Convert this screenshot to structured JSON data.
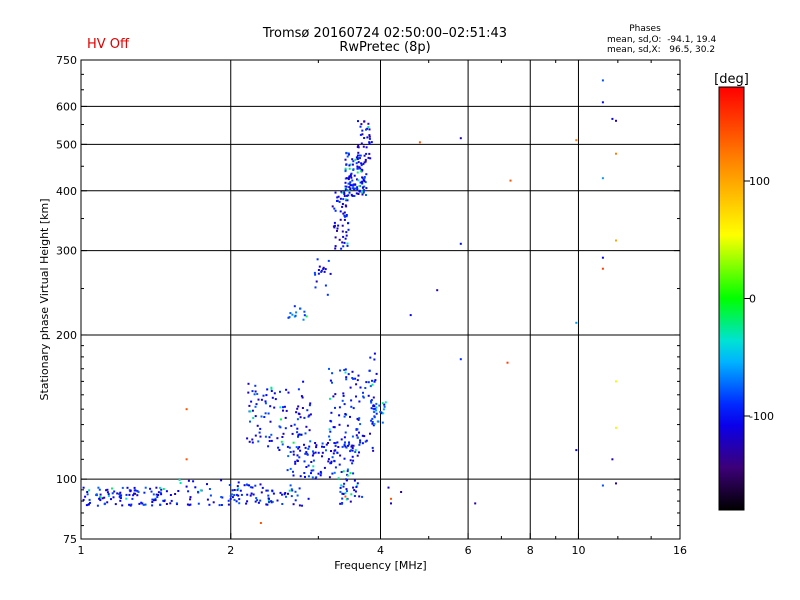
{
  "header": {
    "title_line1": "Tromsø 20160724 02:50:00–02:51:43",
    "title_line2": "RwPretec (8p)",
    "status": "HV Off",
    "status_color": "#e00000"
  },
  "stats": {
    "title": "Phases",
    "line_o": "mean, sd,O:  -94.1, 19.4",
    "line_x": "mean, sd,X:   96.5, 30.2"
  },
  "chart_data": {
    "type": "scatter",
    "xlabel": "Frequency [MHz]",
    "ylabel": "Stationary phase Virtual Height [km]",
    "xscale": "log",
    "yscale": "log",
    "xlim": [
      1,
      16
    ],
    "ylim": [
      75,
      750
    ],
    "xticks": [
      1,
      2,
      4,
      6,
      8,
      10,
      16
    ],
    "xtick_labels": [
      "1",
      "2",
      "4",
      "6",
      "8",
      "10",
      "16"
    ],
    "yticks": [
      75,
      100,
      200,
      300,
      400,
      500,
      600,
      750
    ],
    "ytick_labels": [
      "75",
      "100",
      "200",
      "300",
      "400",
      "500",
      "600",
      "750"
    ],
    "grid": true,
    "colorbar": {
      "label": "[deg]",
      "range": [
        -180,
        180
      ],
      "ticks": [
        -100,
        0,
        100
      ],
      "tick_labels": [
        "-100",
        "0",
        "100"
      ]
    },
    "clusters": [
      {
        "f": [
          1.0,
          1.55
        ],
        "h": [
          88,
          96
        ],
        "n": 110,
        "phase": -100
      },
      {
        "f": [
          1.55,
          2.1
        ],
        "h": [
          88,
          100
        ],
        "n": 40,
        "phase": -100
      },
      {
        "f": [
          2.0,
          2.9
        ],
        "h": [
          88,
          98
        ],
        "n": 70,
        "phase": -100
      },
      {
        "f": [
          2.15,
          2.9
        ],
        "h": [
          115,
          160
        ],
        "n": 110,
        "phase": -100
      },
      {
        "f": [
          2.6,
          3.6
        ],
        "h": [
          100,
          120
        ],
        "n": 110,
        "phase": -95
      },
      {
        "f": [
          3.15,
          3.9
        ],
        "h": [
          110,
          170
        ],
        "n": 110,
        "phase": -100
      },
      {
        "f": [
          3.3,
          3.7
        ],
        "h": [
          88,
          100
        ],
        "n": 30,
        "phase": -100
      },
      {
        "f": [
          3.85,
          4.1
        ],
        "h": [
          130,
          145
        ],
        "n": 25,
        "phase": -80
      },
      {
        "f": [
          3.8,
          3.95
        ],
        "h": [
          155,
          185
        ],
        "n": 8,
        "phase": -100
      },
      {
        "f": [
          2.6,
          2.85
        ],
        "h": [
          215,
          230
        ],
        "n": 14,
        "phase": -80
      },
      {
        "f": [
          2.95,
          3.2
        ],
        "h": [
          235,
          300
        ],
        "n": 18,
        "phase": -100
      },
      {
        "f": [
          3.2,
          3.45
        ],
        "h": [
          300,
          400
        ],
        "n": 60,
        "phase": -110
      },
      {
        "f": [
          3.4,
          3.75
        ],
        "h": [
          390,
          480
        ],
        "n": 120,
        "phase": -100
      },
      {
        "f": [
          3.6,
          3.85
        ],
        "h": [
          460,
          560
        ],
        "n": 35,
        "phase": -110
      }
    ],
    "points": [
      {
        "f": 1.63,
        "h": 140,
        "phase": 140
      },
      {
        "f": 1.63,
        "h": 110,
        "phase": 140
      },
      {
        "f": 2.3,
        "h": 81,
        "phase": 140
      },
      {
        "f": 3.4,
        "h": 92,
        "phase": 140
      },
      {
        "f": 4.15,
        "h": 96,
        "phase": -120
      },
      {
        "f": 4.4,
        "h": 94,
        "phase": -130
      },
      {
        "f": 4.2,
        "h": 91,
        "phase": 140
      },
      {
        "f": 4.2,
        "h": 89,
        "phase": -120
      },
      {
        "f": 4.8,
        "h": 505,
        "phase": 140
      },
      {
        "f": 4.6,
        "h": 220,
        "phase": -110
      },
      {
        "f": 5.2,
        "h": 248,
        "phase": -130
      },
      {
        "f": 5.8,
        "h": 515,
        "phase": -120
      },
      {
        "f": 5.8,
        "h": 310,
        "phase": -100
      },
      {
        "f": 5.8,
        "h": 178,
        "phase": -90
      },
      {
        "f": 6.2,
        "h": 89,
        "phase": -130
      },
      {
        "f": 7.3,
        "h": 420,
        "phase": 140
      },
      {
        "f": 7.2,
        "h": 175,
        "phase": 150
      },
      {
        "f": 9.9,
        "h": 510,
        "phase": 120
      },
      {
        "f": 9.9,
        "h": 212,
        "phase": -60
      },
      {
        "f": 9.9,
        "h": 115,
        "phase": -110
      },
      {
        "f": 11.2,
        "h": 680,
        "phase": -80
      },
      {
        "f": 11.2,
        "h": 612,
        "phase": -100
      },
      {
        "f": 11.2,
        "h": 425,
        "phase": -60
      },
      {
        "f": 11.2,
        "h": 290,
        "phase": -100
      },
      {
        "f": 11.2,
        "h": 275,
        "phase": 150
      },
      {
        "f": 11.2,
        "h": 97,
        "phase": -80
      },
      {
        "f": 11.7,
        "h": 565,
        "phase": -110
      },
      {
        "f": 11.9,
        "h": 560,
        "phase": -120
      },
      {
        "f": 11.9,
        "h": 478,
        "phase": 120
      },
      {
        "f": 11.9,
        "h": 315,
        "phase": 100
      },
      {
        "f": 11.9,
        "h": 160,
        "phase": 50
      },
      {
        "f": 11.9,
        "h": 128,
        "phase": 50
      },
      {
        "f": 11.7,
        "h": 110,
        "phase": -130
      },
      {
        "f": 11.9,
        "h": 98,
        "phase": -130
      }
    ]
  }
}
